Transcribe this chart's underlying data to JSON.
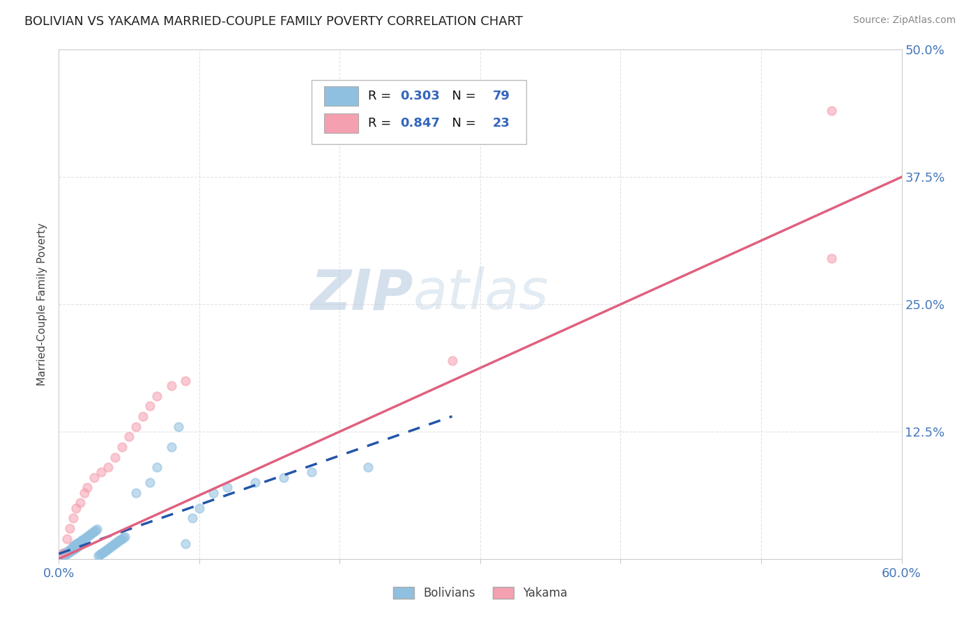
{
  "title": "BOLIVIAN VS YAKAMA MARRIED-COUPLE FAMILY POVERTY CORRELATION CHART",
  "source_text": "Source: ZipAtlas.com",
  "ylabel": "Married-Couple Family Poverty",
  "xlim": [
    0.0,
    0.6
  ],
  "ylim": [
    0.0,
    0.5
  ],
  "bolivians_R": 0.303,
  "bolivians_N": 79,
  "yakama_R": 0.847,
  "yakama_N": 23,
  "bolivians_color": "#90C0E0",
  "yakama_color": "#F5A0B0",
  "scatter_size": 80,
  "scatter_alpha": 0.55,
  "trend_blue_color": "#2255AA",
  "trend_pink_color": "#E06080",
  "watermark_zip": "#B8CCE0",
  "watermark_atlas": "#C8D8E8",
  "background_color": "#FFFFFF",
  "grid_color": "#DDDDDD",
  "title_color": "#222222",
  "label_color": "#444444",
  "tick_color": "#4477BB",
  "legend_text_color_label": "#111111",
  "legend_text_color_value": "#3366BB",
  "source_color": "#888888",
  "bolivians_x": [
    0.003,
    0.004,
    0.005,
    0.006,
    0.007,
    0.007,
    0.008,
    0.008,
    0.009,
    0.01,
    0.01,
    0.01,
    0.011,
    0.012,
    0.012,
    0.013,
    0.014,
    0.015,
    0.016,
    0.017,
    0.018,
    0.019,
    0.02,
    0.021,
    0.022,
    0.023,
    0.024,
    0.025,
    0.026,
    0.027,
    0.028,
    0.029,
    0.03,
    0.031,
    0.032,
    0.033,
    0.034,
    0.035,
    0.036,
    0.037,
    0.038,
    0.039,
    0.04,
    0.041,
    0.042,
    0.043,
    0.044,
    0.045,
    0.046,
    0.047,
    0.002,
    0.003,
    0.004,
    0.005,
    0.006,
    0.007,
    0.008,
    0.009,
    0.01,
    0.011,
    0.012,
    0.013,
    0.014,
    0.015,
    0.016,
    0.055,
    0.065,
    0.07,
    0.08,
    0.085,
    0.09,
    0.095,
    0.1,
    0.11,
    0.12,
    0.14,
    0.16,
    0.18,
    0.22
  ],
  "bolivians_y": [
    0.005,
    0.006,
    0.006,
    0.007,
    0.007,
    0.008,
    0.008,
    0.009,
    0.01,
    0.011,
    0.012,
    0.013,
    0.013,
    0.014,
    0.015,
    0.015,
    0.016,
    0.017,
    0.018,
    0.019,
    0.02,
    0.021,
    0.022,
    0.023,
    0.024,
    0.025,
    0.026,
    0.027,
    0.028,
    0.029,
    0.003,
    0.004,
    0.005,
    0.006,
    0.007,
    0.008,
    0.009,
    0.01,
    0.011,
    0.012,
    0.013,
    0.014,
    0.015,
    0.016,
    0.017,
    0.018,
    0.019,
    0.02,
    0.021,
    0.022,
    0.001,
    0.002,
    0.003,
    0.004,
    0.005,
    0.006,
    0.007,
    0.008,
    0.009,
    0.01,
    0.011,
    0.012,
    0.013,
    0.014,
    0.015,
    0.065,
    0.075,
    0.09,
    0.11,
    0.13,
    0.015,
    0.04,
    0.05,
    0.065,
    0.07,
    0.075,
    0.08,
    0.085,
    0.09
  ],
  "yakama_x": [
    0.003,
    0.006,
    0.008,
    0.01,
    0.012,
    0.015,
    0.018,
    0.02,
    0.025,
    0.03,
    0.035,
    0.04,
    0.045,
    0.05,
    0.055,
    0.06,
    0.065,
    0.07,
    0.08,
    0.09,
    0.28,
    0.55,
    0.55
  ],
  "yakama_y": [
    0.005,
    0.02,
    0.03,
    0.04,
    0.05,
    0.055,
    0.065,
    0.07,
    0.08,
    0.085,
    0.09,
    0.1,
    0.11,
    0.12,
    0.13,
    0.14,
    0.15,
    0.16,
    0.17,
    0.175,
    0.195,
    0.44,
    0.295
  ],
  "blue_trend_x": [
    0.0,
    0.28
  ],
  "blue_trend_y": [
    0.005,
    0.14
  ],
  "pink_trend_x": [
    0.0,
    0.6
  ],
  "pink_trend_y": [
    0.0,
    0.375
  ]
}
